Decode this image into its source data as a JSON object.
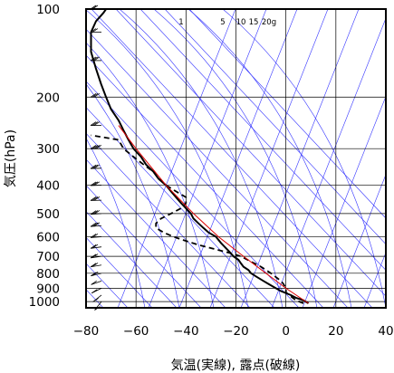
{
  "chart_data": {
    "type": "line",
    "subtype": "skew-t",
    "xlabel": "気温(実線), 露点(破線)",
    "ylabel": "気圧(hPa)",
    "x_axis": {
      "ticks": [
        -80,
        -60,
        -40,
        -20,
        0,
        20,
        40
      ],
      "range": [
        -80,
        40
      ]
    },
    "y_axis": {
      "scale": "log",
      "ticks": [
        100,
        200,
        300,
        400,
        500,
        600,
        700,
        800,
        900,
        1000
      ],
      "range": [
        100,
        1050
      ]
    },
    "mixing_ratio_labels": [
      "1",
      "5",
      "10",
      "15",
      "20g"
    ],
    "colors": {
      "isopleths": "#3333ff",
      "parcel": "#dd0000",
      "profile": "#000000",
      "grid": "#000000"
    },
    "series": [
      {
        "role": "temperature",
        "style": "solid",
        "points": [
          [
            1013,
            9
          ],
          [
            990,
            7
          ],
          [
            970,
            4
          ],
          [
            950,
            2
          ],
          [
            920,
            -2
          ],
          [
            900,
            -4
          ],
          [
            870,
            -7
          ],
          [
            850,
            -9
          ],
          [
            820,
            -12
          ],
          [
            800,
            -14
          ],
          [
            780,
            -15
          ],
          [
            760,
            -17
          ],
          [
            740,
            -18
          ],
          [
            720,
            -19
          ],
          [
            700,
            -21
          ],
          [
            670,
            -23
          ],
          [
            650,
            -24.5
          ],
          [
            630,
            -26
          ],
          [
            600,
            -28
          ],
          [
            580,
            -31
          ],
          [
            560,
            -33
          ],
          [
            540,
            -35
          ],
          [
            520,
            -37
          ],
          [
            500,
            -38
          ],
          [
            480,
            -40
          ],
          [
            460,
            -42
          ],
          [
            440,
            -44
          ],
          [
            420,
            -46
          ],
          [
            400,
            -48
          ],
          [
            380,
            -51
          ],
          [
            360,
            -53
          ],
          [
            340,
            -56
          ],
          [
            320,
            -58
          ],
          [
            300,
            -61
          ],
          [
            280,
            -63
          ],
          [
            260,
            -65
          ],
          [
            240,
            -67
          ],
          [
            220,
            -70
          ],
          [
            200,
            -72
          ],
          [
            180,
            -74
          ],
          [
            160,
            -76
          ],
          [
            140,
            -78
          ],
          [
            120,
            -78
          ],
          [
            110,
            -76
          ],
          [
            103,
            -73
          ],
          [
            100,
            -72
          ]
        ]
      },
      {
        "role": "dewpoint",
        "style": "dashed",
        "points": [
          [
            1013,
            7
          ],
          [
            990,
            4
          ],
          [
            960,
            2
          ],
          [
            930,
            0
          ],
          [
            900,
            0
          ],
          [
            870,
            -1
          ],
          [
            850,
            -2
          ],
          [
            800,
            -6
          ],
          [
            760,
            -10
          ],
          [
            730,
            -14
          ],
          [
            700,
            -18
          ],
          [
            680,
            -23
          ],
          [
            660,
            -29
          ],
          [
            640,
            -35
          ],
          [
            620,
            -40
          ],
          [
            600,
            -45
          ],
          [
            580,
            -49
          ],
          [
            560,
            -52
          ],
          [
            540,
            -52
          ],
          [
            520,
            -50
          ],
          [
            500,
            -46
          ],
          [
            480,
            -42
          ],
          [
            460,
            -40
          ],
          [
            440,
            -40
          ],
          [
            420,
            -44
          ],
          [
            400,
            -48
          ],
          [
            380,
            -51
          ],
          [
            360,
            -53
          ],
          [
            340,
            -57
          ],
          [
            320,
            -61
          ],
          [
            300,
            -65
          ],
          [
            280,
            -67
          ],
          [
            270,
            -78
          ]
        ]
      },
      {
        "role": "parcel",
        "style": "solid-red",
        "points": [
          [
            1013,
            9
          ],
          [
            900,
            0
          ],
          [
            800,
            -8
          ],
          [
            700,
            -17
          ],
          [
            600,
            -27
          ],
          [
            500,
            -37
          ],
          [
            400,
            -48
          ],
          [
            300,
            -60
          ],
          [
            250,
            -67
          ]
        ]
      }
    ],
    "wind_barbs": [
      {
        "p": 1000,
        "u": 8,
        "v": 10
      },
      {
        "p": 950,
        "u": 10,
        "v": 8
      },
      {
        "p": 900,
        "u": 12,
        "v": 6
      },
      {
        "p": 850,
        "u": 14,
        "v": 5
      },
      {
        "p": 800,
        "u": 16,
        "v": 4
      },
      {
        "p": 750,
        "u": 18,
        "v": 3
      },
      {
        "p": 700,
        "u": 20,
        "v": 3
      },
      {
        "p": 650,
        "u": 22,
        "v": 3
      },
      {
        "p": 600,
        "u": 24,
        "v": 2
      },
      {
        "p": 550,
        "u": 26,
        "v": 2
      },
      {
        "p": 500,
        "u": 28,
        "v": 2
      },
      {
        "p": 450,
        "u": 30,
        "v": 1
      },
      {
        "p": 400,
        "u": 32,
        "v": 1
      },
      {
        "p": 350,
        "u": 34,
        "v": 1
      },
      {
        "p": 300,
        "u": 36,
        "v": 1
      },
      {
        "p": 250,
        "u": 34,
        "v": 0
      },
      {
        "p": 200,
        "u": 32,
        "v": 0
      },
      {
        "p": 150,
        "u": 28,
        "v": 0
      },
      {
        "p": 120,
        "u": 24,
        "v": 0
      },
      {
        "p": 100,
        "u": 20,
        "v": 0
      }
    ]
  }
}
